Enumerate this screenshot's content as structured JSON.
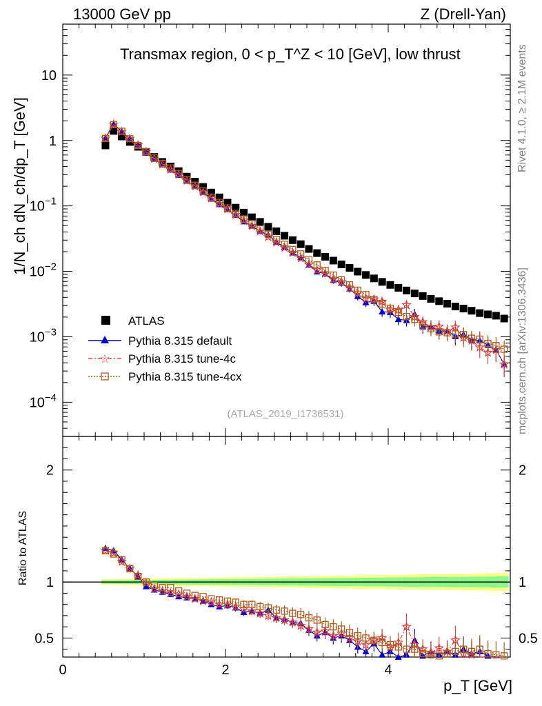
{
  "header": {
    "left": "13000 GeV pp",
    "right": "Z (Drell-Yan)"
  },
  "side_labels": {
    "rivet": "Rivet 4.1.0, ≥ 2.1M events",
    "mcplots": "mcplots.cern.ch [arXiv:1306.3436]"
  },
  "chart_data": {
    "type": "scatter",
    "title": "Transmax region, 0 < p_T^Z < 10 [GeV], low thrust",
    "xlabel": "p_T [GeV]",
    "ylabel_main": "1/N_ch dN_ch/dp_T [GeV]",
    "ylabel_ratio": "Ratio to ATLAS",
    "reference": "(ATLAS_2019_I1736531)",
    "xlim": [
      0,
      5.5
    ],
    "ylim_main": [
      3e-05,
      60
    ],
    "ylim_ratio": [
      0.33,
      2.3
    ],
    "xticks": [
      "0",
      "2",
      "4"
    ],
    "yticks_main": [
      "10",
      "1",
      "10^-1",
      "10^-2",
      "10^-3",
      "10^-4"
    ],
    "yticks_ratio": [
      "0.5",
      "1",
      "2"
    ],
    "x": [
      0.525,
      0.625,
      0.725,
      0.825,
      0.925,
      1.025,
      1.125,
      1.225,
      1.325,
      1.425,
      1.525,
      1.625,
      1.725,
      1.825,
      1.925,
      2.025,
      2.125,
      2.225,
      2.325,
      2.425,
      2.525,
      2.625,
      2.725,
      2.825,
      2.925,
      3.025,
      3.125,
      3.225,
      3.325,
      3.425,
      3.525,
      3.625,
      3.725,
      3.825,
      3.925,
      4.025,
      4.125,
      4.225,
      4.325,
      4.425,
      4.525,
      4.625,
      4.725,
      4.825,
      4.925,
      5.025,
      5.125,
      5.225,
      5.325,
      5.425
    ],
    "series": [
      {
        "name": "ATLAS",
        "values": [
          0.84,
          1.4,
          1.15,
          0.95,
          0.8,
          0.67,
          0.56,
          0.47,
          0.4,
          0.34,
          0.28,
          0.235,
          0.195,
          0.16,
          0.135,
          0.112,
          0.094,
          0.079,
          0.067,
          0.057,
          0.048,
          0.041,
          0.035,
          0.03,
          0.026,
          0.022,
          0.019,
          0.0167,
          0.0146,
          0.0128,
          0.0113,
          0.0099,
          0.0088,
          0.0078,
          0.0069,
          0.0062,
          0.0056,
          0.0051,
          0.0046,
          0.0042,
          0.0038,
          0.0035,
          0.0032,
          0.0029,
          0.0027,
          0.0025,
          0.0023,
          0.0022,
          0.0021,
          0.0019
        ]
      },
      {
        "name": "Pythia 8.315 default",
        "ratio": [
          1.3,
          1.28,
          1.2,
          1.12,
          1.05,
          0.96,
          0.93,
          0.91,
          0.89,
          0.87,
          0.86,
          0.85,
          0.83,
          0.8,
          0.78,
          0.79,
          0.77,
          0.73,
          0.74,
          0.72,
          0.75,
          0.68,
          0.67,
          0.64,
          0.63,
          0.57,
          0.52,
          0.55,
          0.5,
          0.52,
          0.48,
          0.42,
          0.38,
          0.45,
          0.35,
          0.38,
          0.33,
          0.35,
          0.48,
          0.34,
          0.38,
          0.35,
          0.38,
          0.35,
          0.4,
          0.36,
          0.38,
          0.34,
          0.3,
          0.2
        ]
      },
      {
        "name": "Pythia 8.315 tune-4c",
        "ratio": [
          1.28,
          1.26,
          1.18,
          1.12,
          1.06,
          0.99,
          0.94,
          0.92,
          0.9,
          0.89,
          0.87,
          0.85,
          0.83,
          0.82,
          0.8,
          0.8,
          0.78,
          0.76,
          0.74,
          0.72,
          0.7,
          0.68,
          0.66,
          0.64,
          0.61,
          0.58,
          0.55,
          0.56,
          0.52,
          0.54,
          0.5,
          0.47,
          0.44,
          0.48,
          0.5,
          0.42,
          0.46,
          0.6,
          0.44,
          0.4,
          0.37,
          0.41,
          0.38,
          0.48,
          0.36,
          0.35,
          0.3,
          0.26,
          0.3,
          0.2
        ]
      },
      {
        "name": "Pythia 8.315 tune-4cx",
        "ratio": [
          1.28,
          1.25,
          1.2,
          1.12,
          1.05,
          1.0,
          0.97,
          0.95,
          0.95,
          0.92,
          0.9,
          0.88,
          0.87,
          0.85,
          0.84,
          0.83,
          0.82,
          0.8,
          0.8,
          0.78,
          0.77,
          0.75,
          0.74,
          0.72,
          0.71,
          0.68,
          0.66,
          0.62,
          0.6,
          0.58,
          0.55,
          0.52,
          0.5,
          0.48,
          0.46,
          0.44,
          0.42,
          0.4,
          0.4,
          0.36,
          0.35,
          0.34,
          0.36,
          0.38,
          0.4,
          0.38,
          0.4,
          0.36,
          0.35,
          0.34
        ]
      }
    ]
  }
}
